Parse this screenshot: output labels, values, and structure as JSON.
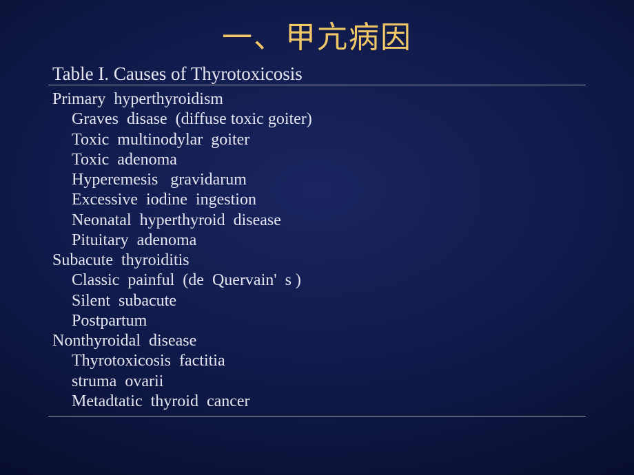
{
  "slide": {
    "title": "一、甲亢病因",
    "table_caption": "Table I. Causes of  Thyrotoxicosis",
    "groups": [
      {
        "header": "Primary  hyperthyroidism",
        "items": [
          "Graves  disase  (diffuse toxic goiter)",
          "Toxic  multinodylar  goiter",
          "Toxic  adenoma",
          "Hyperemesis   gravidarum",
          "Excessive  iodine  ingestion",
          "Neonatal  hyperthyroid  disease",
          "Pituitary  adenoma"
        ]
      },
      {
        "header": "Subacute  thyroiditis",
        "items": [
          "Classic  painful  (de  Quervain'  s )",
          "Silent  subacute",
          "Postpartum"
        ]
      },
      {
        "header": "Nonthyroidal  disease",
        "items": [
          "Thyrotoxicosis  factitia",
          "struma  ovarii",
          "Metadtatic  thyroid  cancer"
        ]
      }
    ],
    "colors": {
      "title_color": "#f0c868",
      "text_color": "#e6e6f0",
      "rule_color": "#aaaaaa",
      "bg_center": "#1a2560",
      "bg_mid": "#0f1948",
      "bg_edge": "#000000"
    },
    "typography": {
      "title_fontsize_pt": 33,
      "caption_fontsize_pt": 20,
      "body_fontsize_pt": 18,
      "title_font": "SimSun",
      "body_font": "Times New Roman"
    }
  }
}
